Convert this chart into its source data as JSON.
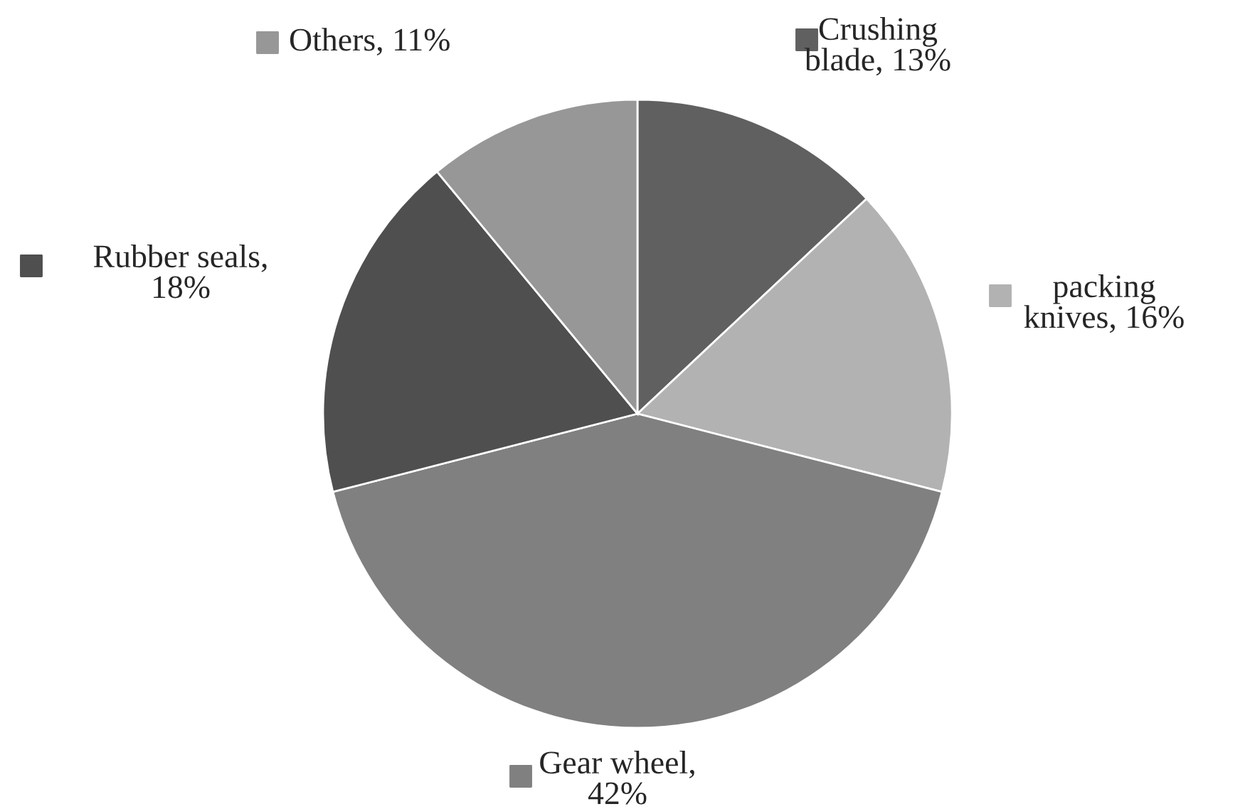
{
  "chart_data": {
    "type": "pie",
    "categories": [
      "Crushing blade, 13%",
      "packing knives, 16%",
      "Gear wheel, 42%",
      "Rubber seals, 18%",
      "Others, 11%"
    ],
    "values": [
      13,
      16,
      42,
      18,
      11
    ],
    "colors": [
      "#606060",
      "#b2b2b2",
      "#808080",
      "#4f4f4f",
      "#979797"
    ],
    "legend": "top left"
  }
}
